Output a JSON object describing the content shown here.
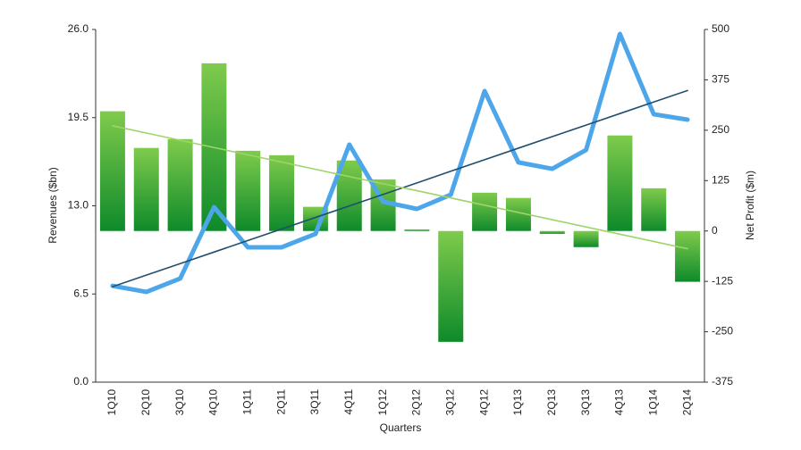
{
  "chart_data": {
    "type": "combo",
    "xlabel": "Quarters",
    "ylabel": "Revenues ($bn)",
    "y2label": "Net Profit ($m)",
    "categories": [
      "1Q10",
      "2Q10",
      "3Q10",
      "4Q10",
      "1Q11",
      "2Q11",
      "3Q11",
      "4Q11",
      "1Q12",
      "2Q12",
      "3Q12",
      "4Q12",
      "1Q13",
      "2Q13",
      "3Q13",
      "4Q13",
      "1Q14",
      "2Q14"
    ],
    "ylim": [
      0,
      26
    ],
    "yticks": [
      {
        "value": 0,
        "label": "0.0"
      },
      6.5,
      {
        "value": 13,
        "label": "13.0"
      },
      19.5,
      {
        "value": 26,
        "label": "26.0"
      }
    ],
    "y2lim": [
      -375,
      500
    ],
    "y2ticks": [
      -375,
      -250,
      -125,
      0,
      125,
      250,
      375,
      500
    ],
    "series": [
      {
        "type": "bar",
        "axis": "y2",
        "color": "#2e9e36",
        "values": [
          297,
          206,
          228,
          416,
          199,
          188,
          60,
          175,
          128,
          4,
          -275,
          95,
          82,
          -7,
          -40,
          237,
          106,
          -126
        ]
      },
      {
        "type": "line",
        "axis": "y",
        "color": "#4ea6ea",
        "values": [
          7.1,
          6.65,
          7.64,
          12.9,
          9.94,
          9.94,
          10.93,
          17.51,
          13.3,
          12.77,
          13.82,
          21.46,
          16.2,
          15.73,
          17.12,
          25.67,
          19.75,
          19.35
        ]
      },
      {
        "type": "line",
        "axis": "y",
        "color": "#1f4e6e",
        "values": [
          7.04,
          7.89,
          8.74,
          9.59,
          10.44,
          11.29,
          12.14,
          12.99,
          13.84,
          14.69,
          15.55,
          16.4,
          17.25,
          18.1,
          18.95,
          19.8,
          20.65,
          21.5
        ]
      },
      {
        "type": "line",
        "axis": "y2",
        "color": "#9fd46a",
        "values": [
          261,
          243,
          225,
          207,
          189,
          171,
          153,
          135,
          117,
          100,
          82,
          64,
          46,
          28,
          10,
          -8,
          -26,
          -44
        ]
      }
    ]
  }
}
